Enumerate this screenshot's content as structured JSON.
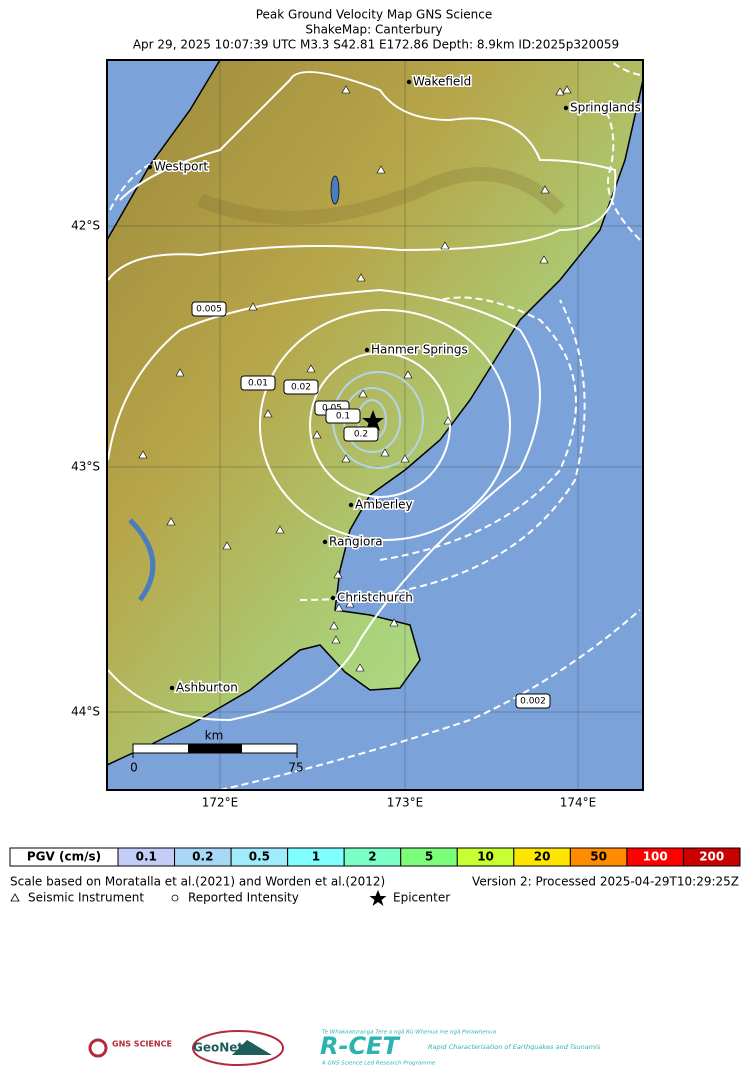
{
  "header": {
    "title": "Peak Ground Velocity Map GNS Science",
    "subtitle": "ShakeMap: Canterbury",
    "details": "Apr 29, 2025 10:07:39 UTC M3.3 S42.81 E172.86 Depth: 8.9km ID:2025p320059"
  },
  "map": {
    "places": [
      "Wakefield",
      "Springlands",
      "Westport",
      "Hanmer Springs",
      "Amberley",
      "Rangiora",
      "Christchurch",
      "Ashburton"
    ],
    "latitude_labels": [
      "42°S",
      "43°S",
      "44°S"
    ],
    "longitude_labels": [
      "172°E",
      "173°E",
      "174°E"
    ],
    "contour_labels": [
      0.005,
      0.01,
      0.02,
      0.05,
      0.1,
      0.2,
      0.002
    ],
    "scale_bar": {
      "unit": "km",
      "start": 0,
      "end": 75
    }
  },
  "legend": {
    "title": "PGV (cm/s)",
    "bins": [
      0.1,
      0.2,
      0.5,
      1,
      2,
      5,
      10,
      20,
      50,
      100,
      200
    ],
    "colors": [
      "#c3cdf7",
      "#a9d8f7",
      "#a0ecfb",
      "#80ffff",
      "#7affc8",
      "#7bff7b",
      "#c8ff32",
      "#ffe600",
      "#ff8c00",
      "#ff0000",
      "#c80000"
    ]
  },
  "notes": {
    "scale": "Scale based on Moratalla et al.(2021) and Worden et al.(2012)",
    "version": "Version 2: Processed 2025-04-29T10:29:25Z",
    "symbols": [
      "Seismic Instrument",
      "Reported Intensity",
      "Epicenter"
    ]
  },
  "logos": {
    "gns": "GNS SCIENCE",
    "geonet": "GeoNet",
    "rcet_top": "Te Whakaaturanga Tere o ngā Rū Whenua me ngā Parawhenua",
    "rcet": "R-CET",
    "rcet_desc": "Rapid Characterisation of Earthquakes and Tsunamis",
    "rcet_bottom": "A GNS Science Led Research Programme"
  }
}
